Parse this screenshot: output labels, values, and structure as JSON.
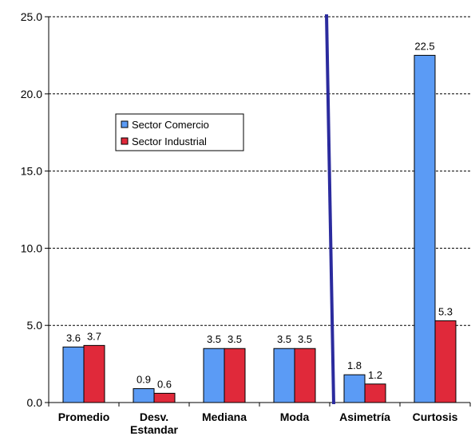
{
  "chart_data": {
    "type": "bar",
    "title": "",
    "xlabel": "",
    "ylabel": "",
    "categories": [
      "Promedio",
      "Desv. Estandar",
      "Mediana",
      "Moda",
      "Asimetría",
      "Curtosis"
    ],
    "category_lines": [
      [
        "Promedio"
      ],
      [
        "Desv.",
        "Estandar"
      ],
      [
        "Mediana"
      ],
      [
        "Moda"
      ],
      [
        "Asimetría"
      ],
      [
        "Curtosis"
      ]
    ],
    "series": [
      {
        "name": "Sector Comercio",
        "color": "#5b9bf5",
        "values": [
          3.6,
          0.9,
          3.5,
          3.5,
          1.8,
          22.5
        ],
        "labels": [
          "3.6",
          "0.9",
          "3.5",
          "3.5",
          "1.8",
          "22.5"
        ]
      },
      {
        "name": "Sector Industrial",
        "color": "#e0293a",
        "values": [
          3.7,
          0.6,
          3.5,
          3.5,
          1.2,
          5.3
        ],
        "labels": [
          "3.7",
          "0.6",
          "3.5",
          "3.5",
          "1.2",
          "5.3"
        ]
      }
    ],
    "ylim": [
      0,
      25
    ],
    "yticks": [
      0,
      5,
      10,
      15,
      20,
      25
    ],
    "ytick_labels": [
      "0.0",
      "5.0",
      "10.0",
      "15.0",
      "20.0",
      "25.0"
    ],
    "grid": true,
    "legend_position": "upper-left",
    "divider_color": "#2b2b9e"
  }
}
